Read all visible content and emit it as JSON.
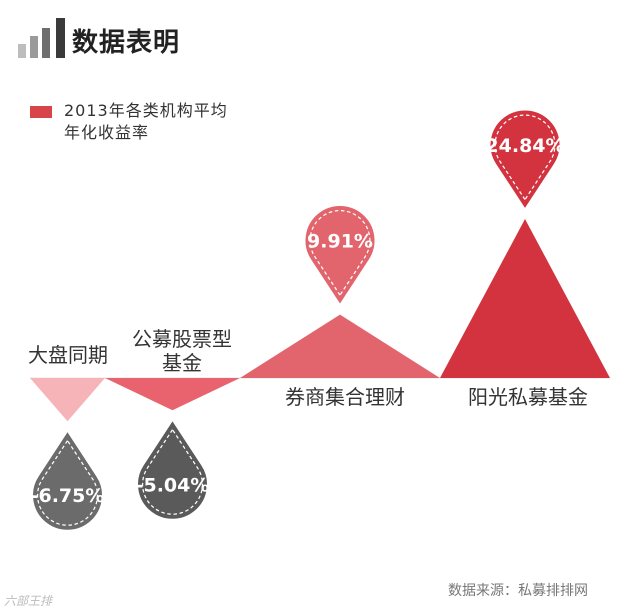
{
  "header": {
    "title": "数据表明",
    "bar_colors": [
      "#bdbdbd",
      "#9a9a9a",
      "#6e6e6e",
      "#3a3a3a"
    ]
  },
  "legend": {
    "label": "2013年各类机构平均年化收益率",
    "color": "#d9434a"
  },
  "source": "数据来源：私募排排网",
  "watermark": "六部王排",
  "chart_data": {
    "type": "bar",
    "title": "",
    "xlabel": "",
    "ylabel": "",
    "categories": [
      "大盘同期",
      "公募股票型基金",
      "券商集合理财",
      "阳光私募基金"
    ],
    "category_lines": [
      [
        "大盘同期"
      ],
      [
        "公募股票型",
        "基金"
      ],
      [
        "券商集合理财"
      ],
      [
        "阳光私募基金"
      ]
    ],
    "values": [
      -6.75,
      -5.04,
      9.91,
      24.84
    ],
    "labels": [
      "-6.75%",
      "-5.04%",
      "9.91%",
      "24.84%"
    ],
    "colors": [
      "#f6b4b8",
      "#e8636d",
      "#e2646c",
      "#d2333e"
    ],
    "pin_colors": [
      "#6b6b6b",
      "#5a5a5a",
      "#e2646c",
      "#d2333e"
    ]
  }
}
